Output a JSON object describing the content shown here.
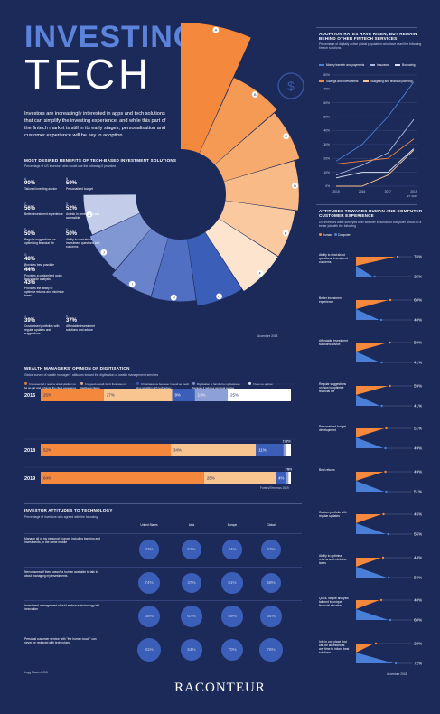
{
  "header": {
    "title_line1": "INVESTING",
    "title_line2": "TECH",
    "intro": "Investors are increasingly interested in apps and tech solutions that can simplify the investing experience, and while this part of the fintech market is still in its early stages, personalisation and customer experience will be key to adoption"
  },
  "benefits": {
    "title": "MOST DESIRED BENEFITS OF TECH-BASED INVESTMENT SOLUTIONS",
    "subtitle": "Percentage of US investors who would use the following if provided",
    "source": "Accenture 2018",
    "items": [
      {
        "letter": "A",
        "value": "90%",
        "label": "Tailored investing advice",
        "pct": 90,
        "color": "#f4883c"
      },
      {
        "letter": "B",
        "value": "59%",
        "label": "Personalised budget",
        "pct": 59,
        "color": "#f59a55"
      },
      {
        "letter": "C",
        "value": "56%",
        "label": "Better investment experience",
        "pct": 56,
        "color": "#f6aa6d"
      },
      {
        "letter": "D",
        "value": "52%",
        "label": "An info in centralised and accessible",
        "pct": 52,
        "color": "#f8ba86"
      },
      {
        "letter": "E",
        "value": "50%",
        "label": "Regular suggestions on optimising financial life",
        "pct": 50,
        "color": "#fbc99f"
      },
      {
        "letter": "F",
        "value": "50%",
        "label": "Ability to chat about investment questions and concerns",
        "pct": 50,
        "color": "#fde4cf"
      },
      {
        "letter": "G",
        "value": "48%",
        "label": "Provides best possible returns",
        "pct": 48,
        "color": "#3b5fb8"
      },
      {
        "letter": "H",
        "value": "44%",
        "label": "Provides a customised quick and simple analysis",
        "pct": 44,
        "color": "#506fc2"
      },
      {
        "letter": "I",
        "value": "43%",
        "label": "Provides the ability to optimise returns and minimise taxes",
        "pct": 43,
        "color": "#6882cb"
      },
      {
        "letter": "J",
        "value": "39%",
        "label": "Customised portfolios with regular updates and suggestions",
        "pct": 39,
        "color": "#8197d4"
      },
      {
        "letter": "K",
        "value": "37%",
        "label": "Affordable investment solutions and advice",
        "pct": 37,
        "color": "#c3cde9"
      }
    ]
  },
  "adoption": {
    "title": "ADOPTION RATES HAVE RISEN, BUT REMAIN BEHIND OTHER FINTECH SERVICES",
    "subtitle": "Percentage of digitally active global population who have used the following fintech solutions",
    "source": "EY 2019",
    "chart_data": {
      "type": "line",
      "x": [
        "2015",
        "2016",
        "2017",
        "2019"
      ],
      "ylim": [
        0,
        80
      ],
      "yticks": [
        "0%",
        "10%",
        "20%",
        "30%",
        "40%",
        "50%",
        "60%",
        "70%",
        "80%"
      ],
      "series": [
        {
          "name": "Money transfer and payments",
          "values": [
            18,
            30,
            50,
            75
          ],
          "color": "#4a7fd8"
        },
        {
          "name": "Insurance",
          "values": [
            8,
            15,
            24,
            48
          ],
          "color": "#a9b8e0"
        },
        {
          "name": "Borrowing",
          "values": [
            6,
            10,
            10,
            27
          ],
          "color": "#d9dff2"
        },
        {
          "name": "Savings and investments",
          "values": [
            16,
            18,
            20,
            34
          ],
          "color": "#f4883c"
        },
        {
          "name": "Budgeting and financial planning",
          "values": [
            0,
            0,
            8,
            26
          ],
          "color": "#f8c48f"
        }
      ]
    }
  },
  "attitudes": {
    "title": "ATTITUDES TOWARDS HUMAN AND COMPUTER CUSTOMER EXPERIENCE",
    "subtitle": "US investors were surveyed over whether a human or computer would do a better job with the following",
    "legend_human": "Human",
    "legend_computer": "Computer",
    "source": "Accenture 2018",
    "rows": [
      {
        "label": "Ability to chat about questions/ investment concerns",
        "human": 76,
        "computer": 25
      },
      {
        "label": "Better investment experience",
        "human": 60,
        "computer": 40
      },
      {
        "label": "Affordable investment solutions/advice",
        "human": 59,
        "computer": 41
      },
      {
        "label": "Regular suggestions on how to optimise financial life",
        "human": 59,
        "computer": 41
      },
      {
        "label": "Personalised budget development",
        "human": 51,
        "computer": 49
      },
      {
        "label": "Best returns",
        "human": 49,
        "computer": 51
      },
      {
        "label": "Custom portfolio with regular updates",
        "human": 45,
        "computer": 55
      },
      {
        "label": "Ability to optimise returns and minimise taxes",
        "human": 44,
        "computer": 56
      },
      {
        "label": "Quick, simple analysis tailored to unique financial situation",
        "human": 40,
        "computer": 60
      },
      {
        "label": "Info in one place that can be accessed at any time to inform best solutions",
        "human": 28,
        "computer": 72
      }
    ]
  },
  "digitisation": {
    "title": "WEALTH MANAGERS' OPINION OF DIGITISATION",
    "subtitle": "Global survey of wealth managers' attitudes toward the digitisation of wealth management services",
    "source": "Forbes/Temenos 2019",
    "legend": [
      {
        "label": "It is essential, I need a virtual platform to be on-par and enhance the client experience",
        "color": "#f4883c"
      },
      {
        "label": "It is good overall, but it frustrates my traditional clients",
        "color": "#f8c48f"
      },
      {
        "label": "It frustrates me because I spend so much time wrestling with technology",
        "color": "#3b5fb8"
      },
      {
        "label": "Digitisation is harmful to my business because it reduces personal service",
        "color": "#8da0d8"
      },
      {
        "label": "I have no opinion",
        "color": "#ffffff"
      }
    ],
    "chart_data": {
      "type": "bar",
      "categories": [
        "2016",
        "2018",
        "2019"
      ],
      "series": [
        {
          "name": "It is essential",
          "values": [
            25,
            52,
            64
          ]
        },
        {
          "name": "It is good overall",
          "values": [
            27,
            34,
            28
          ]
        },
        {
          "name": "It frustrates me",
          "values": [
            9,
            11,
            4
          ]
        },
        {
          "name": "Digitisation is harmful",
          "values": [
            13,
            1,
            1
          ]
        },
        {
          "name": "I have no opinion",
          "values": [
            25,
            2,
            1
          ]
        }
      ],
      "labels": [
        [
          "25%",
          "27%",
          "9%",
          "13%",
          "25%"
        ],
        [
          "52%",
          "34%",
          "11%",
          "1%",
          "2%"
        ],
        [
          "64%",
          "28%",
          "4%",
          "1%",
          "1%"
        ]
      ]
    }
  },
  "technology": {
    "title": "INVESTOR ATTITUDES TO TECHNOLOGY",
    "subtitle": "Percentage of investors who agreed with the following",
    "source": "Legg Mason 2018",
    "columns": [
      "United States",
      "Asia",
      "Europe",
      "Global"
    ],
    "rows": [
      {
        "label": "Manage all of my personal finance, including banking and investments, in the same mobile",
        "values": [
          "43%",
          "51%",
          "44%",
          "52%"
        ]
      },
      {
        "label": "Nervousness if there wasn't a human available to talk to about managing my investments",
        "values": [
          "74%",
          "47%",
          "61%",
          "58%"
        ]
      },
      {
        "label": "Investment management should embrace technology-led innovation",
        "values": [
          "65%",
          "67%",
          "59%",
          "64%"
        ]
      },
      {
        "label": "Personal customer service with \"the human touch\" can never be replaced with technology",
        "values": [
          "81%",
          "64%",
          "70%",
          "76%"
        ]
      }
    ]
  },
  "footer": {
    "brand": "RACONTEUR"
  }
}
